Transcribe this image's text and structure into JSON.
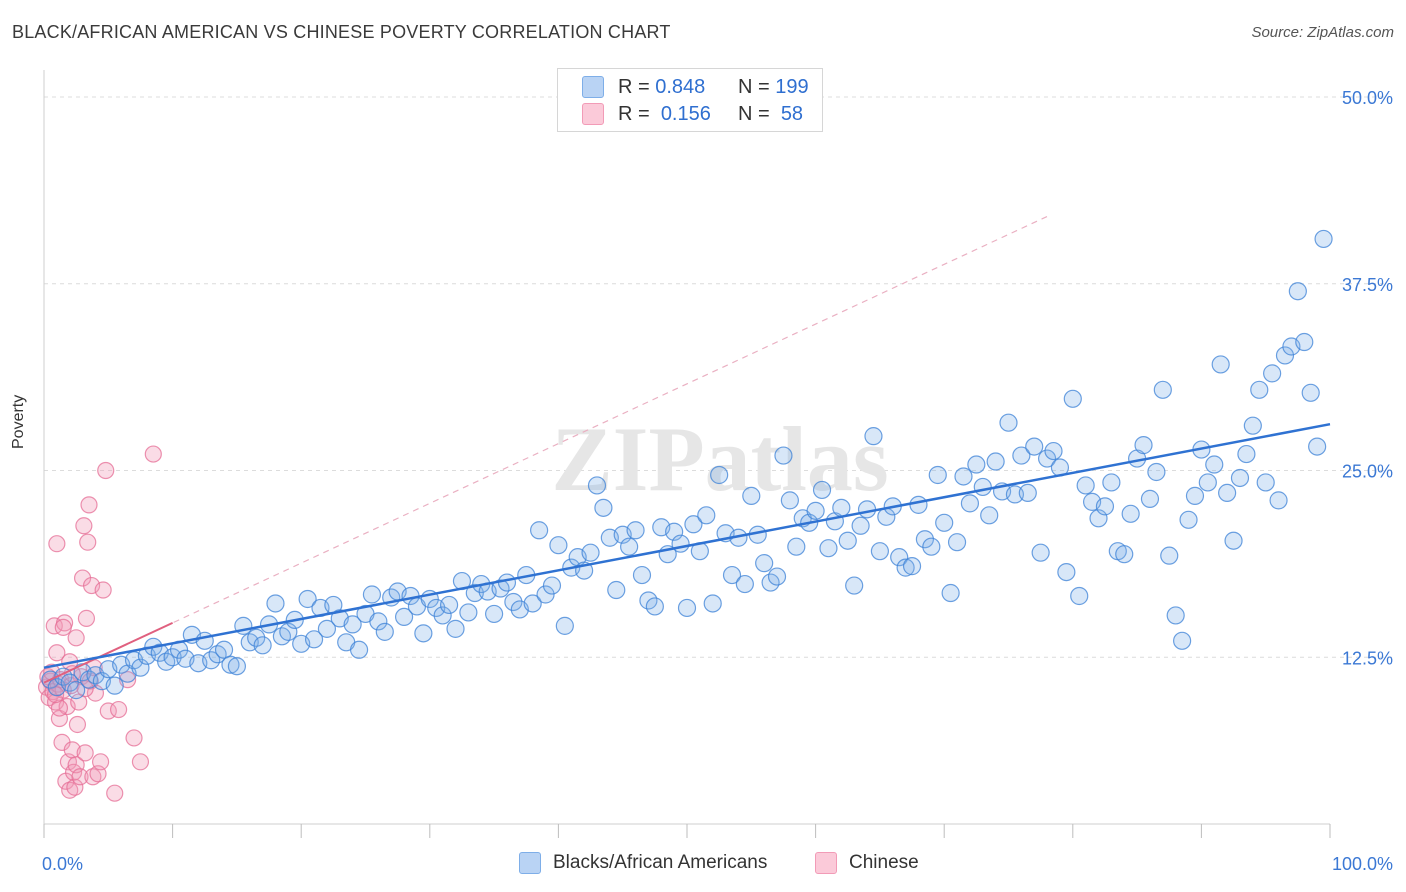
{
  "title": "BLACK/AFRICAN AMERICAN VS CHINESE POVERTY CORRELATION CHART",
  "source": "Source: ZipAtlas.com",
  "watermark": "ZIPatlas",
  "legend": {
    "rows": [
      {
        "r_label": "R =",
        "r_value": "0.848",
        "n_label": "N =",
        "n_value": "199",
        "color": "#7eaee8"
      },
      {
        "r_label": "R =",
        "r_value": "0.156",
        "n_label": "N =",
        "n_value": "58",
        "color": "#f29bb7"
      }
    ]
  },
  "bottom_legend": [
    {
      "label": "Blacks/African Americans",
      "color": "#7eaee8"
    },
    {
      "label": "Chinese",
      "color": "#f29bb7"
    }
  ],
  "chart_data": {
    "type": "scatter",
    "title": "BLACK/AFRICAN AMERICAN VS CHINESE POVERTY CORRELATION CHART",
    "xlabel": "",
    "ylabel": "Poverty",
    "xlim": [
      0,
      100
    ],
    "ylim": [
      0,
      52
    ],
    "x_tick_labels": [
      "0.0%",
      "100.0%"
    ],
    "y_ticks": [
      12.5,
      25.0,
      37.5,
      50.0
    ],
    "y_tick_labels": [
      "12.5%",
      "25.0%",
      "37.5%",
      "50.0%"
    ],
    "grid": true,
    "legend_position": "top-center",
    "series": [
      {
        "name": "Blacks/African Americans",
        "color": "#7eaee8",
        "line_color": "#2f72d2",
        "trend": {
          "x": [
            0,
            100
          ],
          "y": [
            11.8,
            28.1
          ]
        },
        "points": [
          [
            0.5,
            11.0
          ],
          [
            1.0,
            10.5
          ],
          [
            1.5,
            11.2
          ],
          [
            2.0,
            10.8
          ],
          [
            2.5,
            10.3
          ],
          [
            3.0,
            11.5
          ],
          [
            3.5,
            11.0
          ],
          [
            4.0,
            11.3
          ],
          [
            4.5,
            10.9
          ],
          [
            5.0,
            11.7
          ],
          [
            5.5,
            10.6
          ],
          [
            6.0,
            12.0
          ],
          [
            6.5,
            11.4
          ],
          [
            7.0,
            12.3
          ],
          [
            7.5,
            11.8
          ],
          [
            8.0,
            12.6
          ],
          [
            8.5,
            13.2
          ],
          [
            9.0,
            12.8
          ],
          [
            9.5,
            12.2
          ],
          [
            10.0,
            12.5
          ],
          [
            10.5,
            13.0
          ],
          [
            11.0,
            12.4
          ],
          [
            11.5,
            14.0
          ],
          [
            12.0,
            12.1
          ],
          [
            12.5,
            13.6
          ],
          [
            13.0,
            12.3
          ],
          [
            13.5,
            12.7
          ],
          [
            14.0,
            13.0
          ],
          [
            14.5,
            12.0
          ],
          [
            15.0,
            11.9
          ],
          [
            15.5,
            14.6
          ],
          [
            16.0,
            13.5
          ],
          [
            16.5,
            13.8
          ],
          [
            17.0,
            13.3
          ],
          [
            17.5,
            14.7
          ],
          [
            18.0,
            16.1
          ],
          [
            18.5,
            13.9
          ],
          [
            19.0,
            14.2
          ],
          [
            19.5,
            15.0
          ],
          [
            20.0,
            13.4
          ],
          [
            20.5,
            16.4
          ],
          [
            21.0,
            13.7
          ],
          [
            21.5,
            15.8
          ],
          [
            22.0,
            14.4
          ],
          [
            22.5,
            16.0
          ],
          [
            23.0,
            15.1
          ],
          [
            23.5,
            13.5
          ],
          [
            24.0,
            14.7
          ],
          [
            24.5,
            13.0
          ],
          [
            25.0,
            15.4
          ],
          [
            25.5,
            16.7
          ],
          [
            26.0,
            14.9
          ],
          [
            26.5,
            14.2
          ],
          [
            27.0,
            16.5
          ],
          [
            27.5,
            16.9
          ],
          [
            28.0,
            15.2
          ],
          [
            28.5,
            16.6
          ],
          [
            29.0,
            15.9
          ],
          [
            29.5,
            14.1
          ],
          [
            30.0,
            16.4
          ],
          [
            30.5,
            15.8
          ],
          [
            31.0,
            15.3
          ],
          [
            31.5,
            16.0
          ],
          [
            32.0,
            14.4
          ],
          [
            32.5,
            17.6
          ],
          [
            33.0,
            15.5
          ],
          [
            33.5,
            16.8
          ],
          [
            34.0,
            17.4
          ],
          [
            34.5,
            16.9
          ],
          [
            35.0,
            15.4
          ],
          [
            35.5,
            17.1
          ],
          [
            36.0,
            17.5
          ],
          [
            36.5,
            16.2
          ],
          [
            37.0,
            15.7
          ],
          [
            37.5,
            18.0
          ],
          [
            38.0,
            16.1
          ],
          [
            38.5,
            21.0
          ],
          [
            39.0,
            16.7
          ],
          [
            39.5,
            17.3
          ],
          [
            40.0,
            20.0
          ],
          [
            40.5,
            14.6
          ],
          [
            41.0,
            18.5
          ],
          [
            41.5,
            19.2
          ],
          [
            42.0,
            18.3
          ],
          [
            42.5,
            19.5
          ],
          [
            43.0,
            24.0
          ],
          [
            43.5,
            22.5
          ],
          [
            44.0,
            20.5
          ],
          [
            44.5,
            17.0
          ],
          [
            45.0,
            20.7
          ],
          [
            45.5,
            19.9
          ],
          [
            46.0,
            21.0
          ],
          [
            46.5,
            18.0
          ],
          [
            47.0,
            16.3
          ],
          [
            47.5,
            15.9
          ],
          [
            48.0,
            21.2
          ],
          [
            48.5,
            19.4
          ],
          [
            49.0,
            20.9
          ],
          [
            49.5,
            20.1
          ],
          [
            50.0,
            15.8
          ],
          [
            50.5,
            21.4
          ],
          [
            51.0,
            19.6
          ],
          [
            51.5,
            22.0
          ],
          [
            52.0,
            16.1
          ],
          [
            52.5,
            24.7
          ],
          [
            53.0,
            20.8
          ],
          [
            53.5,
            18.0
          ],
          [
            54.0,
            20.5
          ],
          [
            54.5,
            17.4
          ],
          [
            55.0,
            23.3
          ],
          [
            55.5,
            20.7
          ],
          [
            56.0,
            18.8
          ],
          [
            56.5,
            17.5
          ],
          [
            57.0,
            17.9
          ],
          [
            57.5,
            26.0
          ],
          [
            58.0,
            23.0
          ],
          [
            58.5,
            19.9
          ],
          [
            59.0,
            21.8
          ],
          [
            59.5,
            21.5
          ],
          [
            60.0,
            22.3
          ],
          [
            60.5,
            23.7
          ],
          [
            61.0,
            19.8
          ],
          [
            61.5,
            21.6
          ],
          [
            62.0,
            22.5
          ],
          [
            62.5,
            20.3
          ],
          [
            63.0,
            17.3
          ],
          [
            63.5,
            21.3
          ],
          [
            64.0,
            22.4
          ],
          [
            64.5,
            27.3
          ],
          [
            65.0,
            19.6
          ],
          [
            65.5,
            21.9
          ],
          [
            66.0,
            22.6
          ],
          [
            66.5,
            19.2
          ],
          [
            67.0,
            18.5
          ],
          [
            67.5,
            18.6
          ],
          [
            68.0,
            22.7
          ],
          [
            68.5,
            20.4
          ],
          [
            69.0,
            19.9
          ],
          [
            69.5,
            24.7
          ],
          [
            70.0,
            21.5
          ],
          [
            70.5,
            16.8
          ],
          [
            71.0,
            20.2
          ],
          [
            71.5,
            24.6
          ],
          [
            72.0,
            22.8
          ],
          [
            72.5,
            25.4
          ],
          [
            73.0,
            23.9
          ],
          [
            73.5,
            22.0
          ],
          [
            74.0,
            25.6
          ],
          [
            74.5,
            23.6
          ],
          [
            75.0,
            28.2
          ],
          [
            75.5,
            23.4
          ],
          [
            76.0,
            26.0
          ],
          [
            76.5,
            23.5
          ],
          [
            77.0,
            26.6
          ],
          [
            77.5,
            19.5
          ],
          [
            78.0,
            25.8
          ],
          [
            78.5,
            26.3
          ],
          [
            79.0,
            25.2
          ],
          [
            79.5,
            18.2
          ],
          [
            80.0,
            29.8
          ],
          [
            80.5,
            16.6
          ],
          [
            81.0,
            24.0
          ],
          [
            81.5,
            22.9
          ],
          [
            82.0,
            21.8
          ],
          [
            82.5,
            22.6
          ],
          [
            83.0,
            24.2
          ],
          [
            83.5,
            19.6
          ],
          [
            84.0,
            19.4
          ],
          [
            84.5,
            22.1
          ],
          [
            85.0,
            25.8
          ],
          [
            85.5,
            26.7
          ],
          [
            86.0,
            23.1
          ],
          [
            86.5,
            24.9
          ],
          [
            87.0,
            30.4
          ],
          [
            87.5,
            19.3
          ],
          [
            88.0,
            15.3
          ],
          [
            88.5,
            13.6
          ],
          [
            89.0,
            21.7
          ],
          [
            89.5,
            23.3
          ],
          [
            90.0,
            26.4
          ],
          [
            90.5,
            24.2
          ],
          [
            91.0,
            25.4
          ],
          [
            91.5,
            32.1
          ],
          [
            92.0,
            23.5
          ],
          [
            92.5,
            20.3
          ],
          [
            93.0,
            24.5
          ],
          [
            93.5,
            26.1
          ],
          [
            94.0,
            28.0
          ],
          [
            94.5,
            30.4
          ],
          [
            95.0,
            24.2
          ],
          [
            95.5,
            31.5
          ],
          [
            96.0,
            23.0
          ],
          [
            96.5,
            32.7
          ],
          [
            97.0,
            33.3
          ],
          [
            97.5,
            37.0
          ],
          [
            98.0,
            33.6
          ],
          [
            98.5,
            30.2
          ],
          [
            99.0,
            26.6
          ],
          [
            99.5,
            40.5
          ]
        ]
      },
      {
        "name": "Chinese",
        "color": "#f29bb7",
        "line_color": "#e0607f",
        "trend": {
          "x": [
            0,
            10
          ],
          "y": [
            10.8,
            14.8
          ]
        },
        "points": [
          [
            0.2,
            10.5
          ],
          [
            0.3,
            11.2
          ],
          [
            0.4,
            9.8
          ],
          [
            0.5,
            10.9
          ],
          [
            0.6,
            11.5
          ],
          [
            0.7,
            10.2
          ],
          [
            0.8,
            14.6
          ],
          [
            0.9,
            9.5
          ],
          [
            1.0,
            12.8
          ],
          [
            1.1,
            10.7
          ],
          [
            1.2,
            8.4
          ],
          [
            1.3,
            11.0
          ],
          [
            1.4,
            6.8
          ],
          [
            1.5,
            10.3
          ],
          [
            1.6,
            14.8
          ],
          [
            1.7,
            4.2
          ],
          [
            1.8,
            9.2
          ],
          [
            1.9,
            5.5
          ],
          [
            2.0,
            3.6
          ],
          [
            2.1,
            10.6
          ],
          [
            2.2,
            6.3
          ],
          [
            2.3,
            4.8
          ],
          [
            2.4,
            3.8
          ],
          [
            2.5,
            5.3
          ],
          [
            2.6,
            8.0
          ],
          [
            2.7,
            9.5
          ],
          [
            2.8,
            4.5
          ],
          [
            2.9,
            11.2
          ],
          [
            3.0,
            17.8
          ],
          [
            3.1,
            21.3
          ],
          [
            3.2,
            6.1
          ],
          [
            3.3,
            15.1
          ],
          [
            3.4,
            20.2
          ],
          [
            3.5,
            22.7
          ],
          [
            3.6,
            10.9
          ],
          [
            3.7,
            17.3
          ],
          [
            3.8,
            4.5
          ],
          [
            3.9,
            11.8
          ],
          [
            4.0,
            10.1
          ],
          [
            4.2,
            4.7
          ],
          [
            4.4,
            5.5
          ],
          [
            4.6,
            17.0
          ],
          [
            4.8,
            25.0
          ],
          [
            5.0,
            8.9
          ],
          [
            5.5,
            3.4
          ],
          [
            5.8,
            9.0
          ],
          [
            6.5,
            11.0
          ],
          [
            7.0,
            7.1
          ],
          [
            7.5,
            5.5
          ],
          [
            8.5,
            26.1
          ],
          [
            1.0,
            20.1
          ],
          [
            1.5,
            14.5
          ],
          [
            2.0,
            12.2
          ],
          [
            2.5,
            13.8
          ],
          [
            1.2,
            9.1
          ],
          [
            0.9,
            10.0
          ],
          [
            3.2,
            10.4
          ],
          [
            2.2,
            11.4
          ]
        ]
      }
    ]
  }
}
